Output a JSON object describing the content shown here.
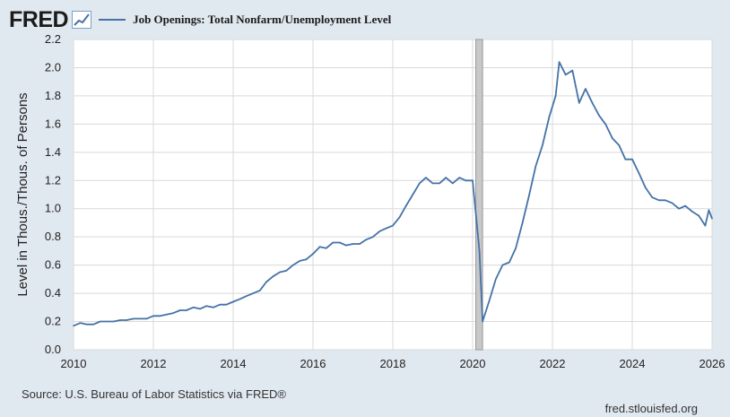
{
  "header": {
    "logo_text": "FRED",
    "series_title": "Job Openings: Total Nonfarm/Unemployment Level",
    "series_color": "#4572a7"
  },
  "footer": {
    "source": "Source: U.S. Bureau of Labor Statistics via FRED®",
    "credit": "fred.stlouisfed.org"
  },
  "chart_data": {
    "type": "line",
    "title": "Job Openings: Total Nonfarm/Unemployment Level",
    "xlabel": "",
    "ylabel": "Level in Thous./Thous. of Persons",
    "xlim": [
      2010.0,
      2026.0
    ],
    "ylim": [
      0.0,
      2.2
    ],
    "x_ticks": [
      2010,
      2012,
      2014,
      2016,
      2018,
      2020,
      2022,
      2024,
      2026
    ],
    "x_tick_labels": [
      "2010",
      "2012",
      "2014",
      "2016",
      "2018",
      "2020",
      "2022",
      "2024",
      "2026"
    ],
    "y_ticks": [
      0.0,
      0.2,
      0.4,
      0.6,
      0.8,
      1.0,
      1.2,
      1.4,
      1.6,
      1.8,
      2.0,
      2.2
    ],
    "y_tick_labels": [
      "0.0",
      "0.2",
      "0.4",
      "0.6",
      "0.8",
      "1.0",
      "1.2",
      "1.4",
      "1.6",
      "1.8",
      "2.0",
      "2.2"
    ],
    "grid": true,
    "recession_shading": [
      2020.08,
      2020.25
    ],
    "series": [
      {
        "color": "#4572a7",
        "points": [
          [
            2010.0,
            0.17
          ],
          [
            2010.17,
            0.19
          ],
          [
            2010.33,
            0.18
          ],
          [
            2010.5,
            0.18
          ],
          [
            2010.67,
            0.2
          ],
          [
            2010.83,
            0.2
          ],
          [
            2011.0,
            0.2
          ],
          [
            2011.17,
            0.21
          ],
          [
            2011.33,
            0.21
          ],
          [
            2011.5,
            0.22
          ],
          [
            2011.67,
            0.22
          ],
          [
            2011.83,
            0.22
          ],
          [
            2012.0,
            0.24
          ],
          [
            2012.17,
            0.24
          ],
          [
            2012.33,
            0.25
          ],
          [
            2012.5,
            0.26
          ],
          [
            2012.67,
            0.28
          ],
          [
            2012.83,
            0.28
          ],
          [
            2013.0,
            0.3
          ],
          [
            2013.17,
            0.29
          ],
          [
            2013.33,
            0.31
          ],
          [
            2013.5,
            0.3
          ],
          [
            2013.67,
            0.32
          ],
          [
            2013.83,
            0.32
          ],
          [
            2014.0,
            0.34
          ],
          [
            2014.17,
            0.36
          ],
          [
            2014.33,
            0.38
          ],
          [
            2014.5,
            0.4
          ],
          [
            2014.67,
            0.42
          ],
          [
            2014.83,
            0.48
          ],
          [
            2015.0,
            0.52
          ],
          [
            2015.17,
            0.55
          ],
          [
            2015.33,
            0.56
          ],
          [
            2015.5,
            0.6
          ],
          [
            2015.67,
            0.63
          ],
          [
            2015.83,
            0.64
          ],
          [
            2016.0,
            0.68
          ],
          [
            2016.17,
            0.73
          ],
          [
            2016.33,
            0.72
          ],
          [
            2016.5,
            0.76
          ],
          [
            2016.67,
            0.76
          ],
          [
            2016.83,
            0.74
          ],
          [
            2017.0,
            0.75
          ],
          [
            2017.17,
            0.75
          ],
          [
            2017.33,
            0.78
          ],
          [
            2017.5,
            0.8
          ],
          [
            2017.67,
            0.84
          ],
          [
            2017.83,
            0.86
          ],
          [
            2018.0,
            0.88
          ],
          [
            2018.17,
            0.94
          ],
          [
            2018.33,
            1.02
          ],
          [
            2018.5,
            1.1
          ],
          [
            2018.67,
            1.18
          ],
          [
            2018.83,
            1.22
          ],
          [
            2019.0,
            1.18
          ],
          [
            2019.17,
            1.18
          ],
          [
            2019.33,
            1.22
          ],
          [
            2019.5,
            1.18
          ],
          [
            2019.67,
            1.22
          ],
          [
            2019.83,
            1.2
          ],
          [
            2020.0,
            1.2
          ],
          [
            2020.17,
            0.7
          ],
          [
            2020.25,
            0.2
          ],
          [
            2020.42,
            0.35
          ],
          [
            2020.58,
            0.5
          ],
          [
            2020.75,
            0.6
          ],
          [
            2020.92,
            0.62
          ],
          [
            2021.08,
            0.72
          ],
          [
            2021.25,
            0.9
          ],
          [
            2021.42,
            1.1
          ],
          [
            2021.58,
            1.3
          ],
          [
            2021.75,
            1.45
          ],
          [
            2021.92,
            1.65
          ],
          [
            2022.08,
            1.8
          ],
          [
            2022.17,
            2.04
          ],
          [
            2022.33,
            1.95
          ],
          [
            2022.5,
            1.98
          ],
          [
            2022.67,
            1.75
          ],
          [
            2022.83,
            1.85
          ],
          [
            2023.0,
            1.75
          ],
          [
            2023.17,
            1.66
          ],
          [
            2023.33,
            1.6
          ],
          [
            2023.5,
            1.5
          ],
          [
            2023.67,
            1.45
          ],
          [
            2023.83,
            1.35
          ],
          [
            2024.0,
            1.35
          ],
          [
            2024.17,
            1.25
          ],
          [
            2024.33,
            1.15
          ],
          [
            2024.5,
            1.08
          ],
          [
            2024.67,
            1.06
          ],
          [
            2024.83,
            1.06
          ],
          [
            2025.0,
            1.04
          ],
          [
            2025.17,
            1.0
          ],
          [
            2025.33,
            1.02
          ],
          [
            2025.5,
            0.98
          ],
          [
            2025.67,
            0.95
          ],
          [
            2025.83,
            0.88
          ],
          [
            2025.92,
            0.99
          ],
          [
            2026.0,
            0.93
          ]
        ]
      }
    ]
  }
}
